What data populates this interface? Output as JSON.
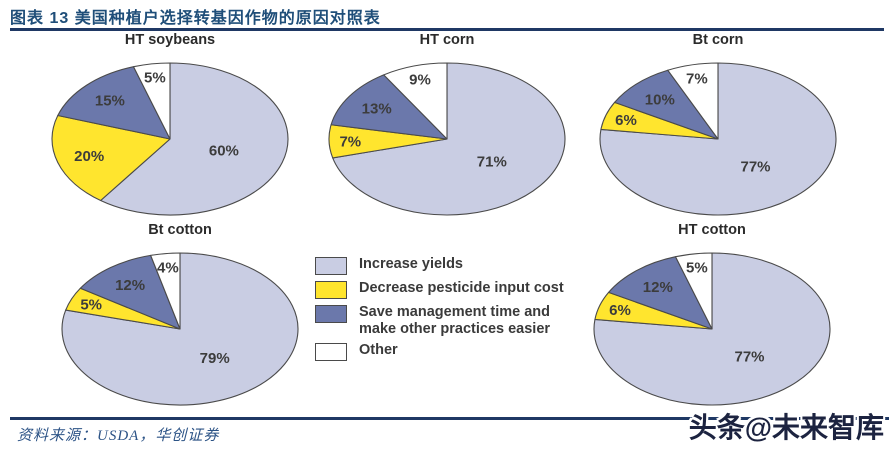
{
  "header": {
    "title": "图表 13  美国种植户选择转基因作物的原因对照表"
  },
  "footer": {
    "source": "资料来源：USDA，华创证券",
    "watermark": "头条@未来智库"
  },
  "colors": {
    "accent_line": "#1f3864",
    "title_text": "#1f4e79",
    "increase_yields": "#c9cde3",
    "decrease_pesticide": "#ffe52e",
    "save_time": "#6b78ab",
    "other": "#ffffff",
    "slice_border": "#4a4a4a",
    "label_text": "#3c3c3c"
  },
  "legend": {
    "items": [
      {
        "label": "Increase yields",
        "color_key": "increase_yields"
      },
      {
        "label": "Decrease pesticide input cost",
        "color_key": "decrease_pesticide"
      },
      {
        "label": "Save management time and make other practices easier",
        "color_key": "save_time"
      },
      {
        "label": "Other",
        "color_key": "other"
      }
    ]
  },
  "chart_data": [
    {
      "type": "pie",
      "title": "HT soybeans",
      "start_angle_deg": 0,
      "direction": "clockwise",
      "slices": [
        {
          "label": "Increase yields",
          "value": 60,
          "display": "60%",
          "color_key": "increase_yields"
        },
        {
          "label": "Decrease pesticide input cost",
          "value": 20,
          "display": "20%",
          "color_key": "decrease_pesticide"
        },
        {
          "label": "Save management time and make other practices easier",
          "value": 15,
          "display": "15%",
          "color_key": "save_time"
        },
        {
          "label": "Other",
          "value": 5,
          "display": "5%",
          "color_key": "other"
        }
      ]
    },
    {
      "type": "pie",
      "title": "HT corn",
      "start_angle_deg": 0,
      "direction": "clockwise",
      "slices": [
        {
          "label": "Increase yields",
          "value": 71,
          "display": "71%",
          "color_key": "increase_yields"
        },
        {
          "label": "Decrease pesticide input cost",
          "value": 7,
          "display": "7%",
          "color_key": "decrease_pesticide"
        },
        {
          "label": "Save management time and make other practices easier",
          "value": 13,
          "display": "13%",
          "color_key": "save_time"
        },
        {
          "label": "Other",
          "value": 9,
          "display": "9%",
          "color_key": "other"
        }
      ]
    },
    {
      "type": "pie",
      "title": "Bt corn",
      "start_angle_deg": 0,
      "direction": "clockwise",
      "slices": [
        {
          "label": "Increase yields",
          "value": 77,
          "display": "77%",
          "color_key": "increase_yields"
        },
        {
          "label": "Decrease pesticide input cost",
          "value": 6,
          "display": "6%",
          "color_key": "decrease_pesticide"
        },
        {
          "label": "Save management time and make other practices easier",
          "value": 10,
          "display": "10%",
          "color_key": "save_time"
        },
        {
          "label": "Other",
          "value": 7,
          "display": "7%",
          "color_key": "other"
        }
      ]
    },
    {
      "type": "pie",
      "title": "Bt cotton",
      "start_angle_deg": 0,
      "direction": "clockwise",
      "slices": [
        {
          "label": "Increase yields",
          "value": 79,
          "display": "79%",
          "color_key": "increase_yields"
        },
        {
          "label": "Decrease pesticide input cost",
          "value": 5,
          "display": "5%",
          "color_key": "decrease_pesticide"
        },
        {
          "label": "Save management time and make other practices easier",
          "value": 12,
          "display": "12%",
          "color_key": "save_time"
        },
        {
          "label": "Other",
          "value": 4,
          "display": "4%",
          "color_key": "other"
        }
      ]
    },
    {
      "type": "pie",
      "title": "HT cotton",
      "start_angle_deg": 0,
      "direction": "clockwise",
      "slices": [
        {
          "label": "Increase yields",
          "value": 77,
          "display": "77%",
          "color_key": "increase_yields"
        },
        {
          "label": "Decrease pesticide input cost",
          "value": 6,
          "display": "6%",
          "color_key": "decrease_pesticide"
        },
        {
          "label": "Save management time and make other practices easier",
          "value": 12,
          "display": "12%",
          "color_key": "save_time"
        },
        {
          "label": "Other",
          "value": 5,
          "display": "5%",
          "color_key": "other"
        }
      ]
    }
  ]
}
